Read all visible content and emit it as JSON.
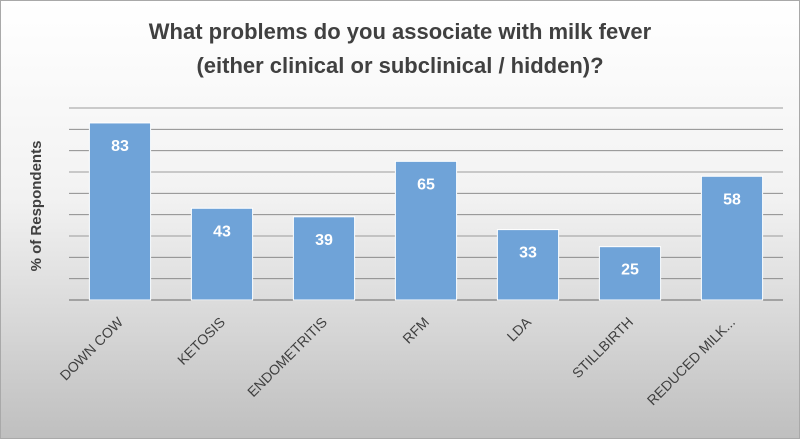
{
  "chart_data": {
    "type": "bar",
    "title_lines": [
      "What problems do you associate with milk fever",
      "(either clinical or subclinical / hidden)?"
    ],
    "xlabel": "",
    "ylabel": "% of Respondents",
    "categories": [
      "DOWN COW",
      "KETOSIS",
      "ENDOMETRITIS",
      "RFM",
      "LDA",
      "STILLBIRTH",
      "REDUCED MILK..."
    ],
    "values": [
      83,
      43,
      39,
      65,
      33,
      25,
      58
    ],
    "ylim": [
      0,
      90
    ],
    "grid": true,
    "data_labels": true,
    "colors": {
      "bar": "#6fa3d8",
      "bar_edge": "#ffffff",
      "gridline": "#7f7f7f",
      "label": "#ffffff",
      "text": "#404040"
    }
  }
}
